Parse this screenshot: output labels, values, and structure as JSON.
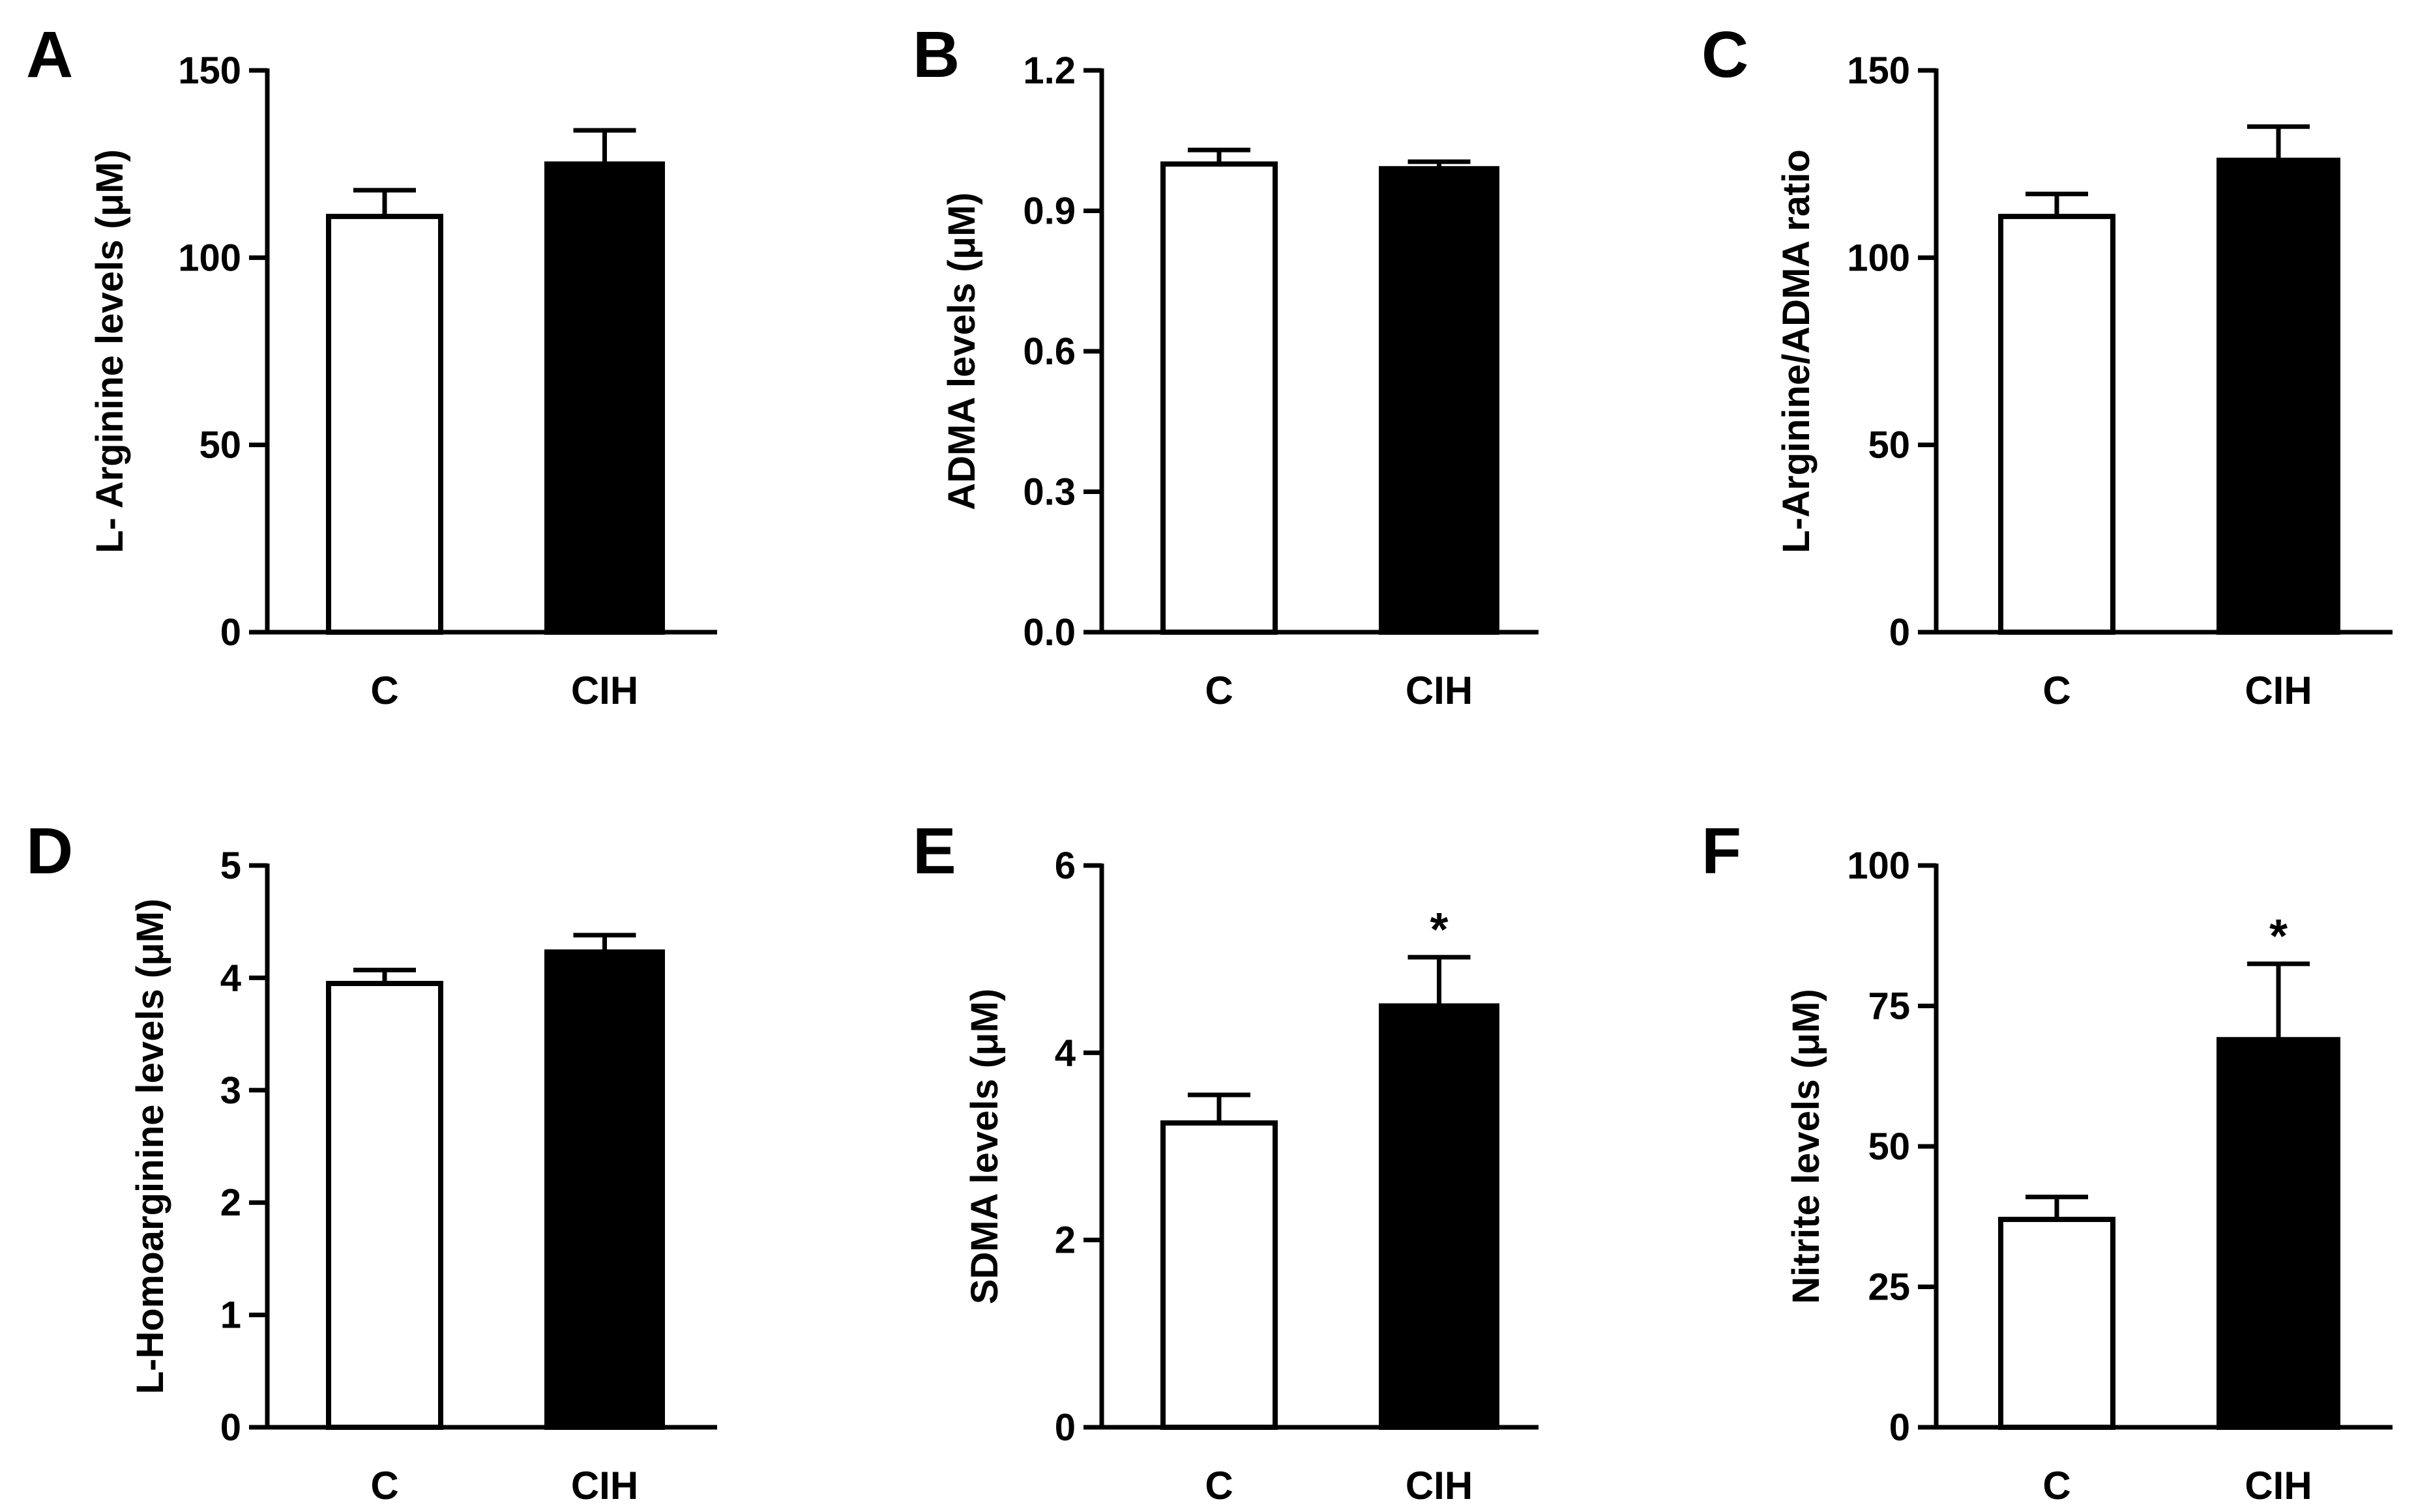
{
  "chart_data": [
    {
      "panel": "A",
      "type": "bar",
      "categories": [
        "C",
        "CIH"
      ],
      "values": [
        111,
        125
      ],
      "errors": [
        7,
        9
      ],
      "fills": [
        "#ffffff",
        "#000000"
      ],
      "significance": [
        "",
        ""
      ],
      "ylabel": "L- Arginine levels (μM)",
      "ylim": [
        0,
        150
      ],
      "yticks": [
        0,
        50,
        100,
        150
      ],
      "yticklabels": [
        "0",
        "50",
        "100",
        "150"
      ]
    },
    {
      "panel": "B",
      "type": "bar",
      "categories": [
        "C",
        "CIH"
      ],
      "values": [
        1.0,
        0.99
      ],
      "errors": [
        0.03,
        0.015
      ],
      "fills": [
        "#ffffff",
        "#000000"
      ],
      "significance": [
        "",
        ""
      ],
      "ylabel": "ADMA levels (μM)",
      "ylim": [
        0,
        1.2
      ],
      "yticks": [
        0,
        0.3,
        0.6,
        0.9,
        1.2
      ],
      "yticklabels": [
        "0.0",
        "0.3",
        "0.6",
        "0.9",
        "1.2"
      ]
    },
    {
      "panel": "C",
      "type": "bar",
      "categories": [
        "C",
        "CIH"
      ],
      "values": [
        111,
        126
      ],
      "errors": [
        6,
        9
      ],
      "fills": [
        "#ffffff",
        "#000000"
      ],
      "significance": [
        "",
        ""
      ],
      "ylabel": "L-Arginine/ADMA ratio",
      "ylim": [
        0,
        150
      ],
      "yticks": [
        0,
        50,
        100,
        150
      ],
      "yticklabels": [
        "0",
        "50",
        "100",
        "150"
      ]
    },
    {
      "panel": "D",
      "type": "bar",
      "categories": [
        "C",
        "CIH"
      ],
      "values": [
        3.95,
        4.23
      ],
      "errors": [
        0.12,
        0.15
      ],
      "fills": [
        "#ffffff",
        "#000000"
      ],
      "significance": [
        "",
        ""
      ],
      "ylabel": "L-Homoarginine levels (μM)",
      "ylim": [
        0,
        5
      ],
      "yticks": [
        0,
        1,
        2,
        3,
        4,
        5
      ],
      "yticklabels": [
        "0",
        "1",
        "2",
        "3",
        "4",
        "5"
      ]
    },
    {
      "panel": "E",
      "type": "bar",
      "categories": [
        "C",
        "CIH"
      ],
      "values": [
        3.25,
        4.5
      ],
      "errors": [
        0.3,
        0.52
      ],
      "fills": [
        "#ffffff",
        "#000000"
      ],
      "significance": [
        "",
        "*"
      ],
      "ylabel": "SDMA levels (μM)",
      "ylim": [
        0,
        6
      ],
      "yticks": [
        0,
        2,
        4,
        6
      ],
      "yticklabels": [
        "0",
        "2",
        "4",
        "6"
      ]
    },
    {
      "panel": "F",
      "type": "bar",
      "categories": [
        "C",
        "CIH"
      ],
      "values": [
        37,
        69
      ],
      "errors": [
        4,
        13.5
      ],
      "fills": [
        "#ffffff",
        "#000000"
      ],
      "significance": [
        "",
        "*"
      ],
      "ylabel": "Nitrite levels (μM)",
      "ylim": [
        0,
        100
      ],
      "yticks": [
        0,
        25,
        50,
        75,
        100
      ],
      "yticklabels": [
        "0",
        "25",
        "50",
        "75",
        "100"
      ]
    }
  ]
}
